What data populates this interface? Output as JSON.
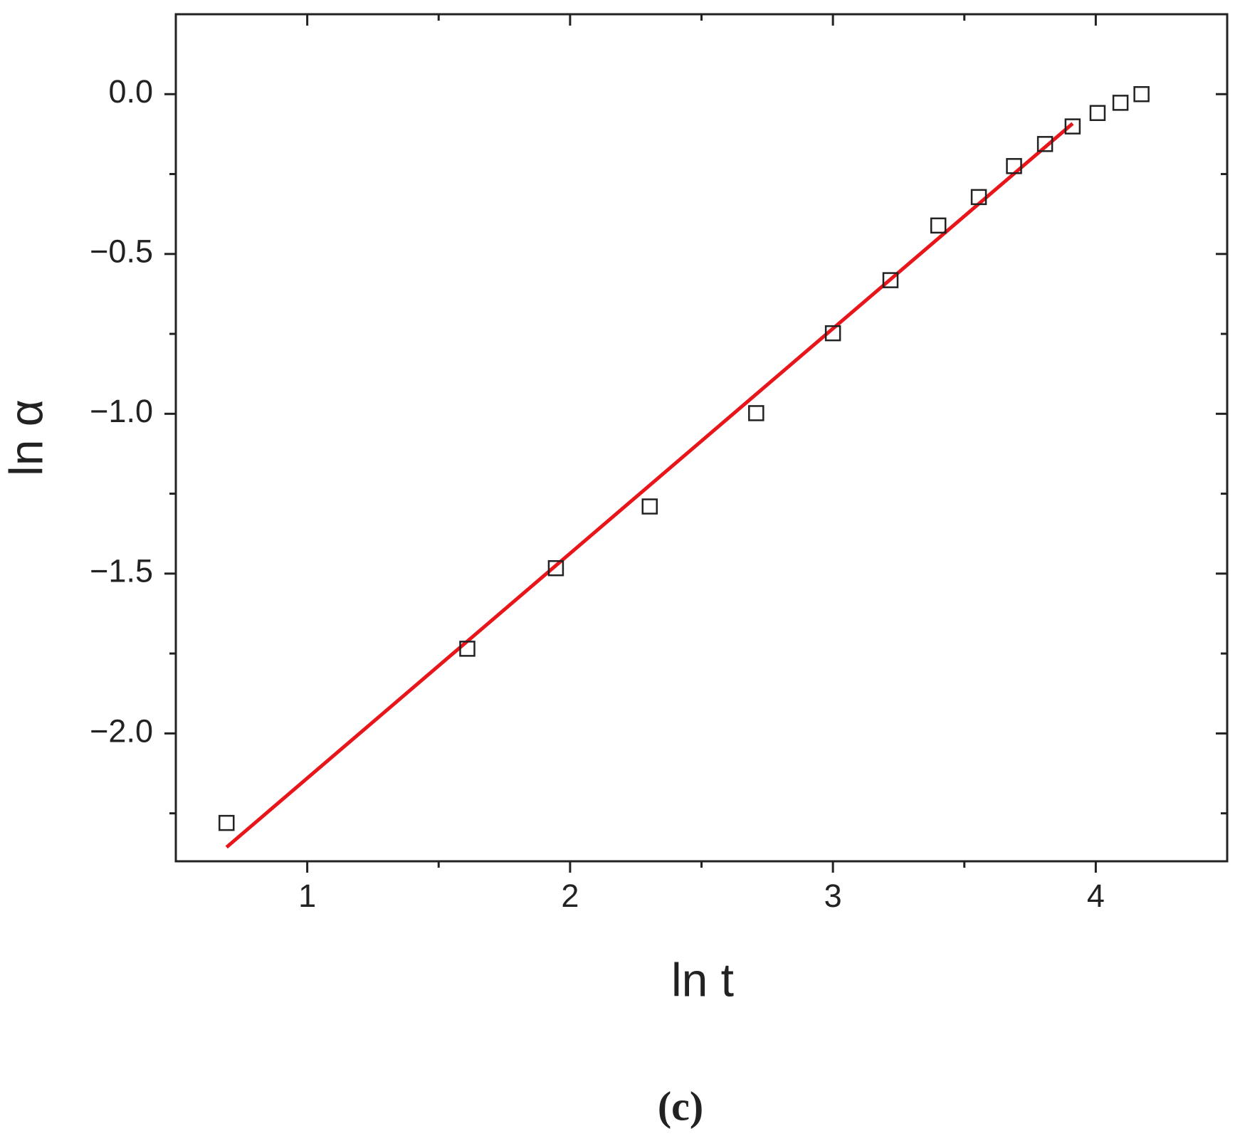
{
  "chart_data": {
    "type": "scatter",
    "x_label": "ln t",
    "y_label": "ln α",
    "caption": "(c)",
    "x": [
      0.693,
      1.609,
      1.946,
      2.303,
      2.708,
      3.0,
      3.219,
      3.401,
      3.555,
      3.689,
      3.807,
      3.912,
      4.007,
      4.094,
      4.174
    ],
    "values": [
      -2.28,
      -1.735,
      -1.483,
      -1.29,
      -0.998,
      -0.748,
      -0.582,
      -0.411,
      -0.322,
      -0.225,
      -0.156,
      -0.101,
      -0.059,
      -0.027,
      0.0
    ],
    "color": "#222222",
    "fit": {
      "x": [
        0.693,
        3.912
      ],
      "values": [
        -2.356,
        -0.092
      ],
      "color": "#e8161b"
    },
    "xlim": [
      0.5,
      4.5
    ],
    "xticks": [
      1,
      2,
      3,
      4
    ],
    "xminor": [
      1.5,
      2.5,
      3.5
    ],
    "ylim": [
      -2.4,
      0.25
    ],
    "yticks": [
      {
        "value": 0,
        "label": "0.0"
      },
      {
        "value": -0.5,
        "label": "−0.5"
      },
      {
        "value": -1,
        "label": "−1.0"
      },
      {
        "value": -1.5,
        "label": "−1.5"
      },
      {
        "value": -2,
        "label": "−2.0"
      }
    ],
    "yminor": [
      -0.25,
      -0.75,
      -1.25,
      -1.75,
      -2.25
    ],
    "grid": false
  }
}
